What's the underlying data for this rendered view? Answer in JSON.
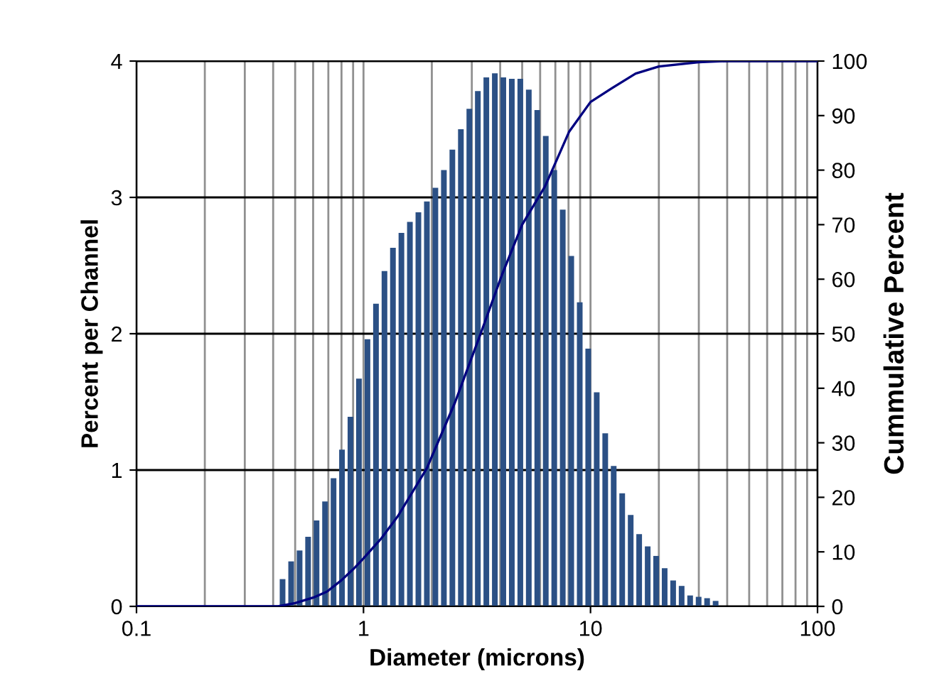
{
  "chart_data": {
    "type": "bar",
    "xlabel": "Diameter (microns)",
    "ylabel": "Percent per Channel",
    "y2label": "Cummulative Percent",
    "log": "x",
    "grid": true,
    "legend": false,
    "xlim": [
      0.1,
      100
    ],
    "xticks": [
      0.1,
      1,
      10,
      100
    ],
    "ylim": [
      0,
      4
    ],
    "yticks": [
      0,
      1,
      2,
      3,
      4
    ],
    "y2lim": [
      0,
      100
    ],
    "y2ticks": [
      0,
      10,
      20,
      30,
      40,
      50,
      60,
      70,
      80,
      90,
      100
    ],
    "series": [
      {
        "color": "#2b5085",
        "x": [
          0.44,
          0.48,
          0.523,
          0.57,
          0.621,
          0.677,
          0.738,
          0.804,
          0.876,
          0.955,
          1.041,
          1.135,
          1.237,
          1.348,
          1.469,
          1.601,
          1.745,
          1.902,
          2.073,
          2.26,
          2.463,
          2.685,
          2.926,
          3.189,
          3.476,
          3.789,
          4.129,
          4.501,
          4.906,
          5.347,
          5.828,
          6.352,
          6.923,
          7.546,
          8.225,
          8.965,
          9.77,
          10.65,
          11.61,
          12.65,
          13.79,
          15.03,
          16.38,
          17.86,
          19.46,
          21.21,
          23.12,
          25.2,
          27.47,
          29.94,
          32.63,
          35.57
        ],
        "values": [
          0.2,
          0.33,
          0.41,
          0.51,
          0.63,
          0.77,
          0.94,
          1.15,
          1.39,
          1.67,
          1.96,
          2.22,
          2.46,
          2.63,
          2.74,
          2.82,
          2.89,
          2.97,
          3.07,
          3.2,
          3.35,
          3.5,
          3.65,
          3.78,
          3.88,
          3.91,
          3.88,
          3.87,
          3.87,
          3.79,
          3.64,
          3.45,
          3.2,
          2.91,
          2.57,
          2.23,
          1.89,
          1.57,
          1.27,
          1.03,
          0.83,
          0.67,
          0.53,
          0.44,
          0.37,
          0.28,
          0.19,
          0.15,
          0.08,
          0.07,
          0.06,
          0.04
        ]
      },
      {
        "type": "line",
        "axis": "y2",
        "color": "#000080",
        "x": [
          0.1,
          0.42,
          0.5,
          0.6,
          0.69,
          0.8,
          0.9,
          1,
          1.2,
          1.42,
          1.9,
          2.53,
          3.28,
          4.09,
          5,
          6.3,
          6.95,
          8.04,
          10,
          12.4,
          15.8,
          20,
          30,
          40,
          100
        ],
        "values": [
          0,
          0,
          0.6,
          1.6,
          2.7,
          4.8,
          6.8,
          8.8,
          12.5,
          16.6,
          25.3,
          37.4,
          50,
          61,
          70,
          77,
          81,
          87,
          92.5,
          95,
          97.7,
          99,
          99.8,
          100,
          100
        ]
      }
    ]
  }
}
